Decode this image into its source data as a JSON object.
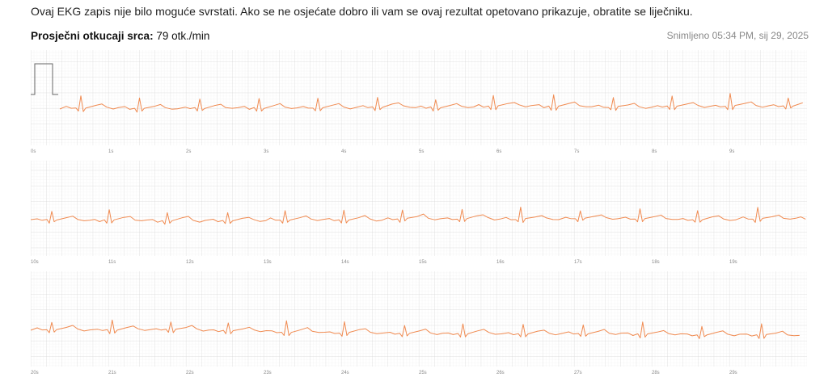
{
  "message": "Ovaj EKG zapis nije bilo moguće svrstati. Ako se ne osjećate dobro ili vam se ovaj rezultat opetovano prikazuje, obratite se liječniku.",
  "heart_rate": {
    "label": "Prosječni otkucaji srca:",
    "value": "79 otk./min"
  },
  "recorded": "Snimljeno 05:34 PM, sij 29, 2025",
  "strips": [
    {
      "time_labels": [
        "0s",
        "1s",
        "2s",
        "3s",
        "4s",
        "5s",
        "6s",
        "7s",
        "8s",
        "9s"
      ]
    },
    {
      "time_labels": [
        "10s",
        "11s",
        "12s",
        "13s",
        "14s",
        "15s",
        "16s",
        "17s",
        "18s",
        "19s"
      ]
    },
    {
      "time_labels": [
        "20s",
        "21s",
        "22s",
        "23s",
        "24s",
        "25s",
        "26s",
        "27s",
        "28s",
        "29s"
      ]
    }
  ]
}
